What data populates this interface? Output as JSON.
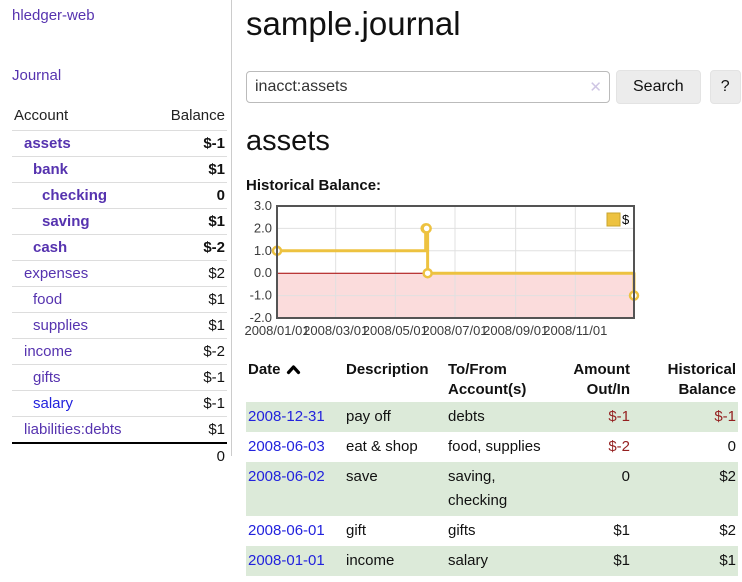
{
  "sidebar": {
    "app_title": "hledger-web",
    "journal_link": "Journal",
    "accounts": {
      "header_account": "Account",
      "header_balance": "Balance",
      "rows": [
        {
          "name": "assets",
          "indent": 1,
          "bold": true,
          "balance": "$-1",
          "balance_tone": "negative",
          "link_color": "purple"
        },
        {
          "name": "bank",
          "indent": 2,
          "bold": true,
          "balance": "$1",
          "balance_tone": "plain",
          "link_color": "purple"
        },
        {
          "name": "checking",
          "indent": 3,
          "bold": true,
          "balance": "0",
          "balance_tone": "plain",
          "link_color": "purple"
        },
        {
          "name": "saving",
          "indent": 3,
          "bold": true,
          "balance": "$1",
          "balance_tone": "plain",
          "link_color": "purple"
        },
        {
          "name": "cash",
          "indent": 2,
          "bold": true,
          "balance": "$-2",
          "balance_tone": "negative",
          "link_color": "purple"
        },
        {
          "name": "expenses",
          "indent": 1,
          "bold": false,
          "balance": "$2",
          "balance_tone": "plain",
          "link_color": "purple"
        },
        {
          "name": "food",
          "indent": 2,
          "bold": false,
          "balance": "$1",
          "balance_tone": "plain",
          "link_color": "purple"
        },
        {
          "name": "supplies",
          "indent": 2,
          "bold": false,
          "balance": "$1",
          "balance_tone": "plain",
          "link_color": "purple"
        },
        {
          "name": "income",
          "indent": 1,
          "bold": false,
          "balance": "$-2",
          "balance_tone": "negative-soft",
          "link_color": "purple"
        },
        {
          "name": "gifts",
          "indent": 2,
          "bold": false,
          "balance": "$-1",
          "balance_tone": "negative-soft",
          "link_color": "purple"
        },
        {
          "name": "salary",
          "indent": 2,
          "bold": false,
          "balance": "$-1",
          "balance_tone": "negative-soft",
          "link_color": "blue"
        },
        {
          "name": "liabilities:debts",
          "indent": 1,
          "bold": false,
          "balance": "$1",
          "balance_tone": "plain",
          "link_color": "purple"
        }
      ],
      "total": "0"
    }
  },
  "header": {
    "title": "sample.journal"
  },
  "search": {
    "query": "inacct:assets",
    "clear_icon": "✕",
    "search_button": "Search",
    "help_button": "?"
  },
  "account_view": {
    "heading": "assets",
    "chart_label": "Historical Balance:"
  },
  "chart_data": {
    "type": "line",
    "step": true,
    "title": "Historical Balance",
    "series": [
      {
        "name": "$",
        "color": "#edc240",
        "points": [
          [
            "2008-01-01",
            1
          ],
          [
            "2008-06-01",
            2
          ],
          [
            "2008-06-02",
            2
          ],
          [
            "2008-06-03",
            0
          ],
          [
            "2008-12-31",
            -1
          ]
        ]
      }
    ],
    "x_range": [
      "2008-01-01",
      "2008-12-31"
    ],
    "x_ticks": [
      {
        "date": "2008-01-01",
        "label": "2008/01/01"
      },
      {
        "date": "2008-03-01",
        "label": "2008/03/01"
      },
      {
        "date": "2008-05-01",
        "label": "2008/05/01"
      },
      {
        "date": "2008-07-01",
        "label": "2008/07/01"
      },
      {
        "date": "2008-09-01",
        "label": "2008/09/01"
      },
      {
        "date": "2008-11-01",
        "label": "2008/11/01"
      }
    ],
    "y_ticks": [
      {
        "value": 3,
        "label": "3.0"
      },
      {
        "value": 2,
        "label": "2.0"
      },
      {
        "value": 1,
        "label": "1.0"
      },
      {
        "value": 0,
        "label": "0.0"
      },
      {
        "value": -1,
        "label": "-1.0"
      },
      {
        "value": -2,
        "label": "-2.0"
      }
    ],
    "ylim": [
      -2,
      3
    ],
    "grid": true,
    "legend_position": "top-right",
    "colors": {
      "negative_region": "#fbdcdc",
      "zero_line": "#a40000",
      "border": "#545454",
      "gridline": "#e0e0e0",
      "tick_label": "#3b3b3b",
      "marker_fill": "#ffffff",
      "legend_border": "#c9a42e"
    }
  },
  "register_table": {
    "headers": {
      "date": "Date",
      "description": "Description",
      "accounts": "To/From Account(s)",
      "amount": "Amount Out/In",
      "balance": "Historical Balance"
    },
    "rows": [
      {
        "date": "2008-12-31",
        "description": "pay off",
        "accounts": "debts",
        "amount": "$-1",
        "amount_tone": "negative",
        "balance": "$-1",
        "balance_tone": "negative",
        "shade": "green"
      },
      {
        "date": "2008-06-03",
        "description": "eat & shop",
        "accounts": "food, supplies",
        "amount": "$-2",
        "amount_tone": "negative",
        "balance": "0",
        "balance_tone": "plain",
        "shade": "white"
      },
      {
        "date": "2008-06-02",
        "description": "save",
        "accounts": "saving, checking",
        "amount": "0",
        "amount_tone": "plain",
        "balance": "$2",
        "balance_tone": "plain",
        "shade": "green"
      },
      {
        "date": "2008-06-01",
        "description": "gift",
        "accounts": "gifts",
        "amount": "$1",
        "amount_tone": "plain",
        "balance": "$2",
        "balance_tone": "plain",
        "shade": "white"
      },
      {
        "date": "2008-01-01",
        "description": "income",
        "accounts": "salary",
        "amount": "$1",
        "amount_tone": "plain",
        "balance": "$1",
        "balance_tone": "plain",
        "shade": "green"
      }
    ]
  },
  "colors": {
    "link_purple": "#5633af",
    "link_blue": "#2222dd",
    "negative_dark": "#941f1f",
    "negative_soft": "#c38c8c",
    "row_green": "#dcead9",
    "sidebar_divider": "#cccccc",
    "chart_line": "#edc240"
  }
}
